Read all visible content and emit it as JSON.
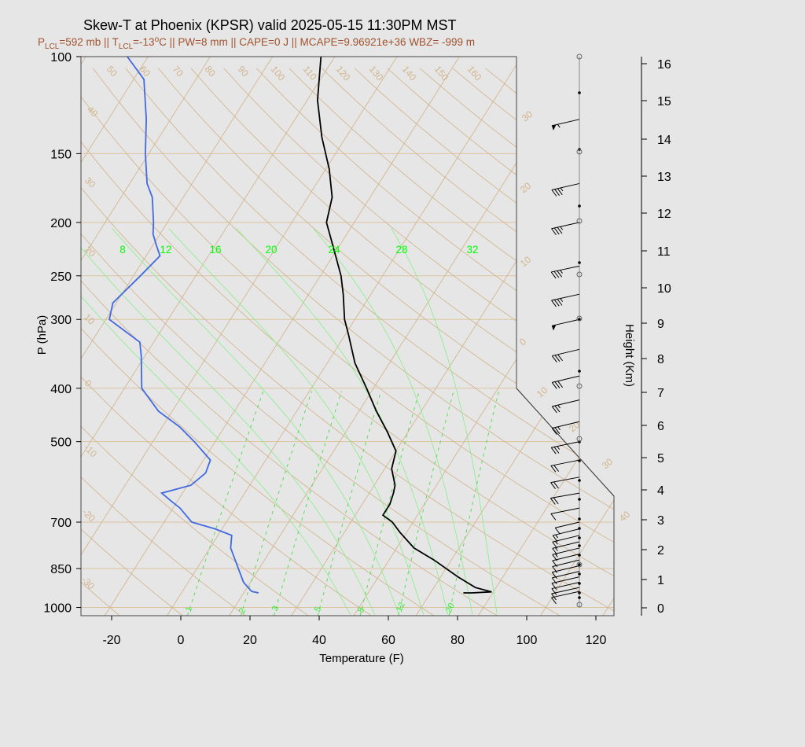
{
  "title": "Skew-T at Phoenix (KPSR) valid 2025-05-15 11:30PM MST",
  "subtitle": {
    "p_lcl_label": "P",
    "p_lcl_sub": "LCL",
    "p_lcl_value": "=592 mb || T",
    "t_lcl_sub": "LCL",
    "t_lcl_value": "=-13",
    "t_lcl_sup": "o",
    "rest": "C || PW=8 mm || CAPE=0 J || MCAPE=9.96921e+36 WBZ= -999 m"
  },
  "colors": {
    "temperature": "#000000",
    "dewpoint": "#4169e1",
    "dry_adiabat": "#d2b48c",
    "moist_adiabat": "#90ee90",
    "background": "#e6e6e6"
  },
  "chart_data": {
    "type": "line",
    "title": "Skew-T at Phoenix (KPSR) valid 2025-05-15 11:30PM MST",
    "xlabel": "Temperature (F)",
    "ylabel": "P (hPa)",
    "y2label": "Height (Km)",
    "xlim": [
      -28,
      125
    ],
    "ylim": [
      1035,
      100
    ],
    "y_scale": "log",
    "x_ticks": [
      "-20",
      "0",
      "20",
      "40",
      "60",
      "80",
      "100",
      "120"
    ],
    "y_ticks": [
      "100",
      "150",
      "200",
      "250",
      "300",
      "400",
      "500",
      "700",
      "850",
      "1000"
    ],
    "height_ticks": [
      "0",
      "1",
      "2",
      "3",
      "4",
      "5",
      "6",
      "7",
      "8",
      "9",
      "10",
      "11",
      "12",
      "13",
      "14",
      "15",
      "16"
    ],
    "series": [
      {
        "name": "temperature",
        "points": [
          [
            941,
            77.5
          ],
          [
            941,
            80
          ],
          [
            937,
            85.5
          ],
          [
            920,
            80
          ],
          [
            880,
            73
          ],
          [
            820,
            63
          ],
          [
            780,
            55
          ],
          [
            730,
            48
          ],
          [
            700,
            44
          ],
          [
            680,
            40
          ],
          [
            650,
            40
          ],
          [
            620,
            39
          ],
          [
            600,
            38
          ],
          [
            560,
            34
          ],
          [
            520,
            32
          ],
          [
            480,
            26
          ],
          [
            440,
            19
          ],
          [
            400,
            12
          ],
          [
            360,
            4
          ],
          [
            320,
            -3
          ],
          [
            300,
            -7
          ],
          [
            270,
            -12
          ],
          [
            250,
            -16
          ],
          [
            220,
            -24
          ],
          [
            200,
            -30
          ],
          [
            180,
            -33
          ],
          [
            160,
            -39
          ],
          [
            140,
            -47
          ],
          [
            120,
            -55
          ],
          [
            100,
            -62
          ]
        ]
      },
      {
        "name": "dewpoint",
        "points": [
          [
            943,
            18
          ],
          [
            940,
            18
          ],
          [
            935,
            16
          ],
          [
            900,
            12
          ],
          [
            850,
            8
          ],
          [
            780,
            2
          ],
          [
            740,
            0
          ],
          [
            720,
            -6
          ],
          [
            700,
            -14
          ],
          [
            660,
            -20
          ],
          [
            640,
            -24
          ],
          [
            620,
            -28
          ],
          [
            600,
            -21
          ],
          [
            570,
            -19
          ],
          [
            540,
            -20
          ],
          [
            500,
            -28
          ],
          [
            470,
            -35
          ],
          [
            440,
            -44
          ],
          [
            400,
            -53
          ],
          [
            350,
            -59
          ],
          [
            330,
            -62
          ],
          [
            300,
            -75
          ],
          [
            280,
            -77
          ],
          [
            250,
            -74
          ],
          [
            230,
            -72
          ],
          [
            220,
            -75
          ],
          [
            210,
            -78
          ],
          [
            200,
            -80
          ],
          [
            180,
            -85
          ],
          [
            170,
            -89
          ],
          [
            150,
            -95
          ],
          [
            130,
            -101
          ],
          [
            110,
            -109
          ],
          [
            100,
            -118
          ]
        ]
      }
    ],
    "dry_adiabat_labels": [
      "50",
      "60",
      "70",
      "80",
      "90",
      "100",
      "110",
      "120",
      "130",
      "140",
      "150",
      "160"
    ],
    "isotherm_labels": [
      "30",
      "20",
      "10",
      "0",
      "10",
      "20",
      "30",
      "40"
    ],
    "moist_adiabat_labels": [
      "8",
      "12",
      "16",
      "20",
      "24",
      "28",
      "32"
    ],
    "mixing_ratio_labels": [
      "1",
      "2",
      "3",
      "5",
      "8",
      "12",
      "20"
    ],
    "left_temperature_labels": [
      "40",
      "30",
      "20",
      "10",
      "0",
      "-10",
      "-20",
      "-30"
    ],
    "wind_barbs_kt": [
      {
        "p": 130,
        "spd": 55,
        "dir": 255
      },
      {
        "p": 170,
        "spd": 35,
        "dir": 255
      },
      {
        "p": 200,
        "spd": 35,
        "dir": 250
      },
      {
        "p": 240,
        "spd": 35,
        "dir": 245
      },
      {
        "p": 270,
        "spd": 35,
        "dir": 250
      },
      {
        "p": 300,
        "spd": 50,
        "dir": 255
      },
      {
        "p": 340,
        "spd": 30,
        "dir": 260
      },
      {
        "p": 380,
        "spd": 30,
        "dir": 260
      },
      {
        "p": 420,
        "spd": 25,
        "dir": 260
      },
      {
        "p": 460,
        "spd": 25,
        "dir": 260
      },
      {
        "p": 500,
        "spd": 25,
        "dir": 245
      },
      {
        "p": 540,
        "spd": 20,
        "dir": 240
      },
      {
        "p": 580,
        "spd": 20,
        "dir": 235
      },
      {
        "p": 620,
        "spd": 20,
        "dir": 230
      },
      {
        "p": 660,
        "spd": 10,
        "dir": 240
      },
      {
        "p": 700,
        "spd": 10,
        "dir": 300
      },
      {
        "p": 720,
        "spd": 15,
        "dir": 270
      },
      {
        "p": 740,
        "spd": 15,
        "dir": 265
      },
      {
        "p": 760,
        "spd": 15,
        "dir": 265
      },
      {
        "p": 780,
        "spd": 15,
        "dir": 265
      },
      {
        "p": 800,
        "spd": 10,
        "dir": 265
      },
      {
        "p": 820,
        "spd": 10,
        "dir": 265
      },
      {
        "p": 840,
        "spd": 10,
        "dir": 260
      },
      {
        "p": 860,
        "spd": 10,
        "dir": 260
      },
      {
        "p": 880,
        "spd": 10,
        "dir": 255
      },
      {
        "p": 900,
        "spd": 10,
        "dir": 255
      },
      {
        "p": 920,
        "spd": 10,
        "dir": 250
      },
      {
        "p": 935,
        "spd": 10,
        "dir": 250
      }
    ]
  }
}
